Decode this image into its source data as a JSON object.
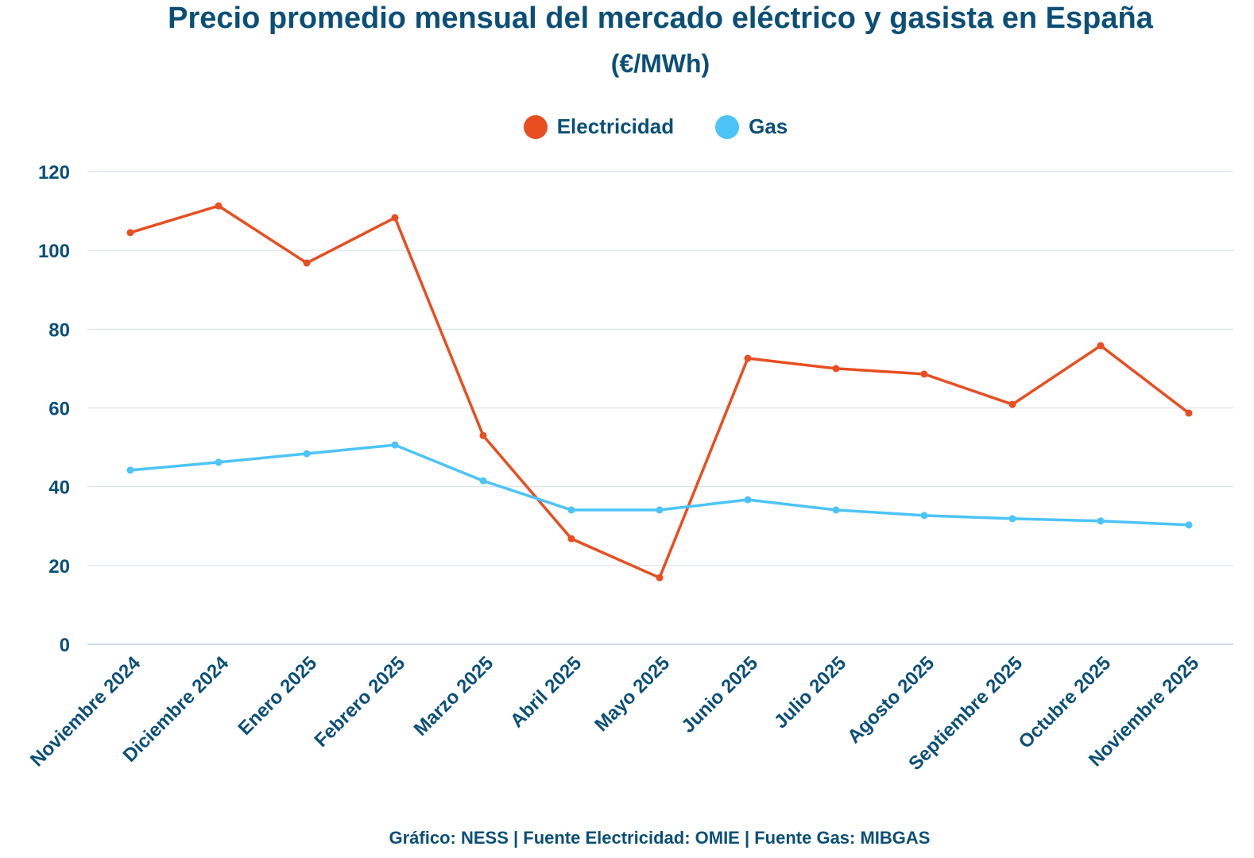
{
  "chart_data": {
    "type": "line",
    "title": "Precio promedio mensual del mercado eléctrico y gasista en España",
    "subtitle": "(€/MWh)",
    "categories": [
      "Noviembre 2024",
      "Diciembre 2024",
      "Enero 2025",
      "Febrero 2025",
      "Marzo 2025",
      "Abril 2025",
      "Mayo 2025",
      "Junio 2025",
      "Julio 2025",
      "Agosto 2025",
      "Septiembre 2025",
      "Octubre 2025",
      "Noviembre 2025"
    ],
    "series": [
      {
        "name": "Electricidad",
        "color": "#e84e1f",
        "values": [
          104.5,
          111.3,
          96.8,
          108.3,
          53.0,
          26.8,
          16.9,
          72.6,
          70.0,
          68.6,
          60.9,
          75.8,
          58.7
        ]
      },
      {
        "name": "Gas",
        "color": "#4cc4f8",
        "values": [
          44.2,
          46.2,
          48.4,
          50.6,
          41.5,
          34.1,
          34.1,
          36.7,
          34.1,
          32.7,
          31.9,
          31.3,
          30.3
        ]
      }
    ],
    "ylim": [
      0,
      120
    ],
    "yticks": [
      0,
      20,
      40,
      60,
      80,
      100,
      120
    ],
    "grid": true,
    "legend": "top-center",
    "xlabel": "",
    "ylabel": ""
  },
  "footer": "Gráfico: NESS | Fuente Electricidad: OMIE | Fuente Gas: MIBGAS"
}
